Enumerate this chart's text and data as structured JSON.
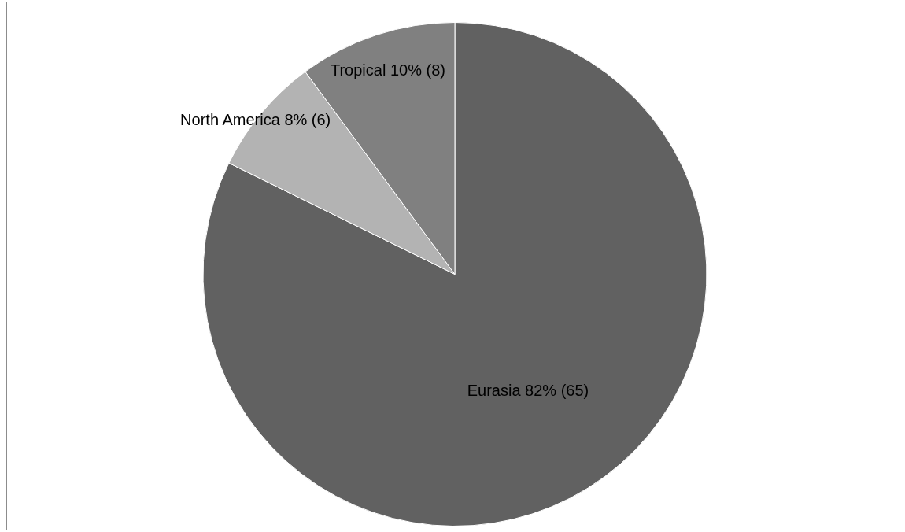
{
  "chart_data": {
    "type": "pie",
    "categories": [
      "Eurasia",
      "North America",
      "Tropical"
    ],
    "values": [
      65,
      6,
      8
    ],
    "colors": [
      "#616161",
      "#b3b3b3",
      "#808080"
    ],
    "value_labels": [
      "82% (65)",
      "8% (6)",
      "10% (8)"
    ]
  }
}
